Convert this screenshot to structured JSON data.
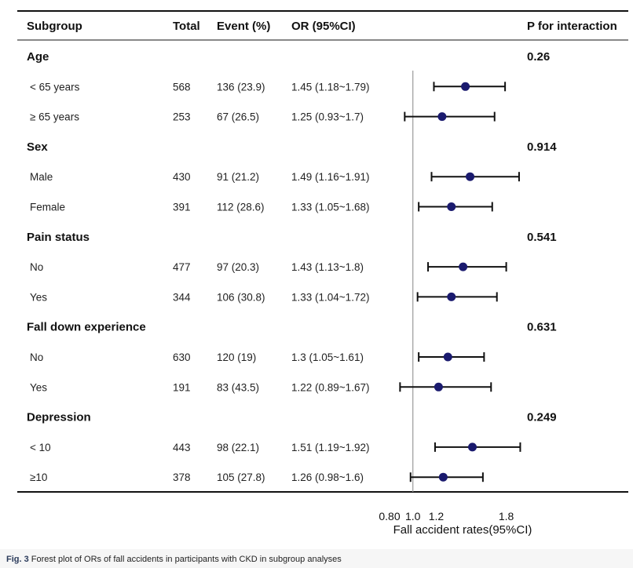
{
  "chart_data": {
    "type": "forest",
    "headers": {
      "subgroup": "Subgroup",
      "total": "Total",
      "event": "Event (%)",
      "or": "OR (95%CI)",
      "p": "P for interaction"
    },
    "groups": [
      {
        "name": "Age",
        "p": "0.26",
        "rows": [
          {
            "label": "< 65 years",
            "total": "568",
            "event": "136 (23.9)",
            "or_text": "1.45 (1.18~1.79)",
            "or": 1.45,
            "lo": 1.18,
            "hi": 1.79
          },
          {
            "label": "≥ 65 years",
            "total": "253",
            "event": "67 (26.5)",
            "or_text": "1.25 (0.93~1.7)",
            "or": 1.25,
            "lo": 0.93,
            "hi": 1.7
          }
        ]
      },
      {
        "name": "Sex",
        "p": "0.914",
        "rows": [
          {
            "label": "Male",
            "total": "430",
            "event": "91 (21.2)",
            "or_text": "1.49 (1.16~1.91)",
            "or": 1.49,
            "lo": 1.16,
            "hi": 1.91
          },
          {
            "label": "Female",
            "total": "391",
            "event": "112 (28.6)",
            "or_text": "1.33 (1.05~1.68)",
            "or": 1.33,
            "lo": 1.05,
            "hi": 1.68
          }
        ]
      },
      {
        "name": "Pain status",
        "p": "0.541",
        "rows": [
          {
            "label": "No",
            "total": "477",
            "event": "97 (20.3)",
            "or_text": "1.43 (1.13~1.8)",
            "or": 1.43,
            "lo": 1.13,
            "hi": 1.8
          },
          {
            "label": "Yes",
            "total": "344",
            "event": "106 (30.8)",
            "or_text": "1.33 (1.04~1.72)",
            "or": 1.33,
            "lo": 1.04,
            "hi": 1.72
          }
        ]
      },
      {
        "name": "Fall down experience",
        "p": "0.631",
        "rows": [
          {
            "label": "No",
            "total": "630",
            "event": "120 (19)",
            "or_text": "1.3 (1.05~1.61)",
            "or": 1.3,
            "lo": 1.05,
            "hi": 1.61
          },
          {
            "label": "Yes",
            "total": "191",
            "event": "83 (43.5)",
            "or_text": "1.22 (0.89~1.67)",
            "or": 1.22,
            "lo": 0.89,
            "hi": 1.67
          }
        ]
      },
      {
        "name": "Depression",
        "p": "0.249",
        "rows": [
          {
            "label": "< 10",
            "total": "443",
            "event": "98 (22.1)",
            "or_text": "1.51 (1.19~1.92)",
            "or": 1.51,
            "lo": 1.19,
            "hi": 1.92
          },
          {
            "label": "≥10",
            "total": "378",
            "event": "105 (27.8)",
            "or_text": "1.26 (0.98~1.6)",
            "or": 1.26,
            "lo": 0.98,
            "hi": 1.6
          }
        ]
      }
    ],
    "x_ticks": [
      "0.80",
      "1.0",
      "1.2",
      "1.8"
    ],
    "x_tick_values": [
      0.8,
      1.0,
      1.2,
      1.8
    ],
    "xlabel": "Fall accident rates(95%CI)",
    "reference_line": 1.0,
    "xlim": [
      0.8,
      1.95
    ],
    "point_color": "#1a1a6e",
    "line_color": "#111111"
  },
  "caption": {
    "label": "Fig. 3",
    "text": "Forest plot of ORs of fall accidents in participants with CKD in subgroup analyses"
  }
}
